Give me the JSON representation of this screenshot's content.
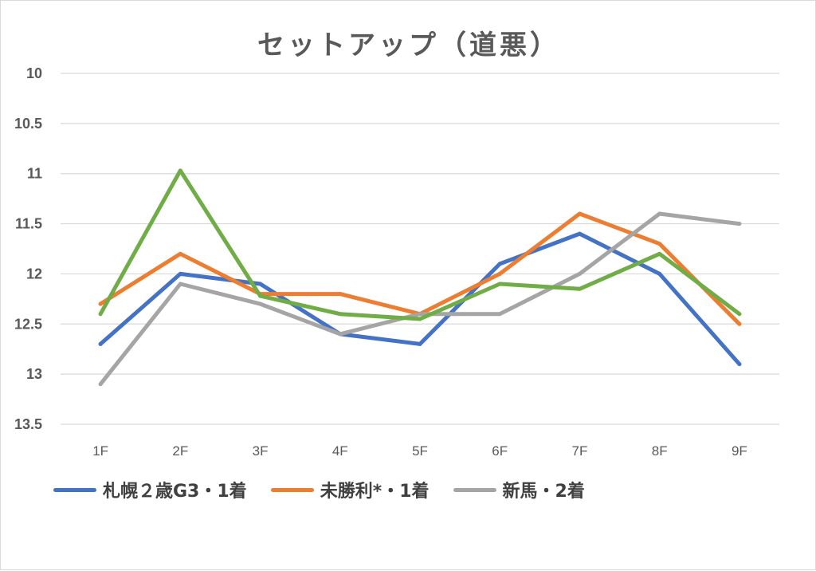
{
  "chart_data": {
    "type": "line",
    "title": "セットアップ（道悪）",
    "xlabel": "",
    "ylabel": "",
    "categories": [
      "1F",
      "2F",
      "3F",
      "4F",
      "5F",
      "6F",
      "7F",
      "8F",
      "9F"
    ],
    "y_ticks": [
      "10",
      "10.5",
      "11",
      "11.5",
      "12",
      "12.5",
      "13",
      "13.5"
    ],
    "ylim": [
      10,
      13.5
    ],
    "y_reversed": true,
    "grid": true,
    "legend_position": "bottom-left",
    "series": [
      {
        "name": "札幌２歳G3・1着",
        "color": "#4472c4",
        "values": [
          12.7,
          12.0,
          12.1,
          12.6,
          12.7,
          11.9,
          11.6,
          12.0,
          12.9
        ]
      },
      {
        "name": "未勝利*・1着",
        "color": "#ed7d31",
        "values": [
          12.3,
          11.8,
          12.2,
          12.2,
          12.4,
          12.0,
          11.4,
          11.7,
          12.5
        ]
      },
      {
        "name": "新馬・2着",
        "color": "#a5a5a5",
        "values": [
          13.1,
          12.1,
          12.3,
          12.6,
          12.4,
          12.4,
          12.0,
          11.4,
          11.5
        ]
      },
      {
        "name": "",
        "color": "#70ad47",
        "values": [
          12.4,
          10.97,
          12.22,
          12.4,
          12.45,
          12.1,
          12.15,
          11.8,
          12.4
        ]
      }
    ]
  }
}
